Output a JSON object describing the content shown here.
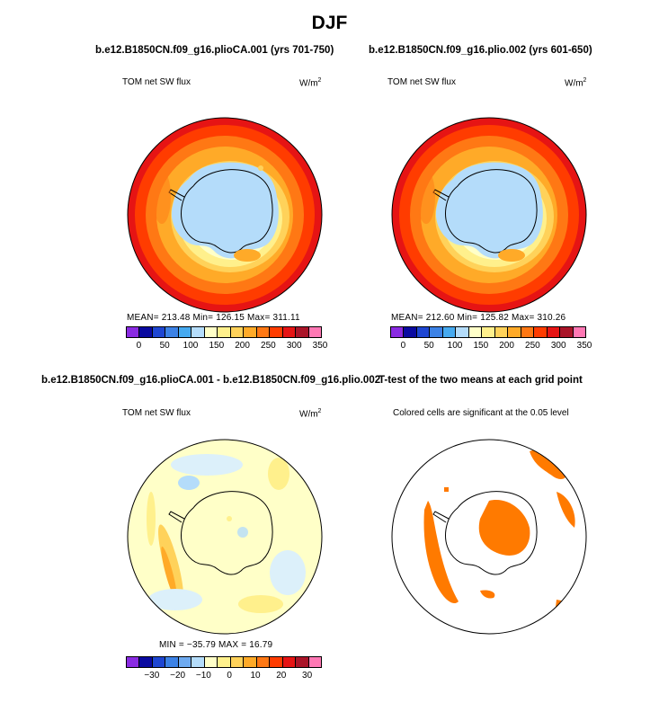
{
  "figure": {
    "title": "DJF"
  },
  "panels": [
    {
      "title": "b.e12.B1850CN.f09_g16.plioCA.001 (yrs 701-750)",
      "variable": "TOM net SW flux",
      "units": "W/m",
      "units_sup": "2",
      "stats": "MEAN= 213.48   Min= 126.15   Max= 311.11",
      "colorbar": {
        "colors": [
          "#8a2be2",
          "#0a0aa0",
          "#1e46d2",
          "#3c82e6",
          "#46aaf0",
          "#b4dcfa",
          "#ffffc8",
          "#fff08c",
          "#ffd25a",
          "#ffaa28",
          "#ff7814",
          "#ff3c00",
          "#e61414",
          "#aa1428",
          "#ff78b4"
        ],
        "labels": [
          "0",
          "50",
          "100",
          "150",
          "200",
          "250",
          "300",
          "350"
        ]
      }
    },
    {
      "title": "b.e12.B1850CN.f09_g16.plio.002 (yrs 601-650)",
      "variable": "TOM net SW flux",
      "units": "W/m",
      "units_sup": "2",
      "stats": "MEAN= 212.60   Min= 125.82   Max= 310.26",
      "colorbar": {
        "colors": [
          "#8a2be2",
          "#0a0aa0",
          "#1e46d2",
          "#3c82e6",
          "#46aaf0",
          "#b4dcfa",
          "#ffffc8",
          "#fff08c",
          "#ffd25a",
          "#ffaa28",
          "#ff7814",
          "#ff3c00",
          "#e61414",
          "#aa1428",
          "#ff78b4"
        ],
        "labels": [
          "0",
          "50",
          "100",
          "150",
          "200",
          "250",
          "300",
          "350"
        ]
      }
    },
    {
      "title": "b.e12.B1850CN.f09_g16.plioCA.001 - b.e12.B1850CN.f09_g16.plio.002",
      "variable": "TOM net SW flux",
      "units": "W/m",
      "units_sup": "2",
      "stats": "MIN = −35.79  MAX =  16.79",
      "colorbar": {
        "colors": [
          "#8a2be2",
          "#0a0aa0",
          "#1e46d2",
          "#3c82e6",
          "#6eaaf0",
          "#b4dcfa",
          "#ffffc8",
          "#fff08c",
          "#ffd25a",
          "#ffaa28",
          "#ff7814",
          "#ff3c00",
          "#e61414",
          "#aa1428",
          "#ff78b4"
        ],
        "labels": [
          "−30",
          "−20",
          "−10",
          "0",
          "10",
          "20",
          "30"
        ]
      }
    },
    {
      "title": "T-test of the two means at each grid point",
      "subtitle": "Colored cells are significant at the 0.05 level",
      "color": "#ff7a00"
    }
  ]
}
